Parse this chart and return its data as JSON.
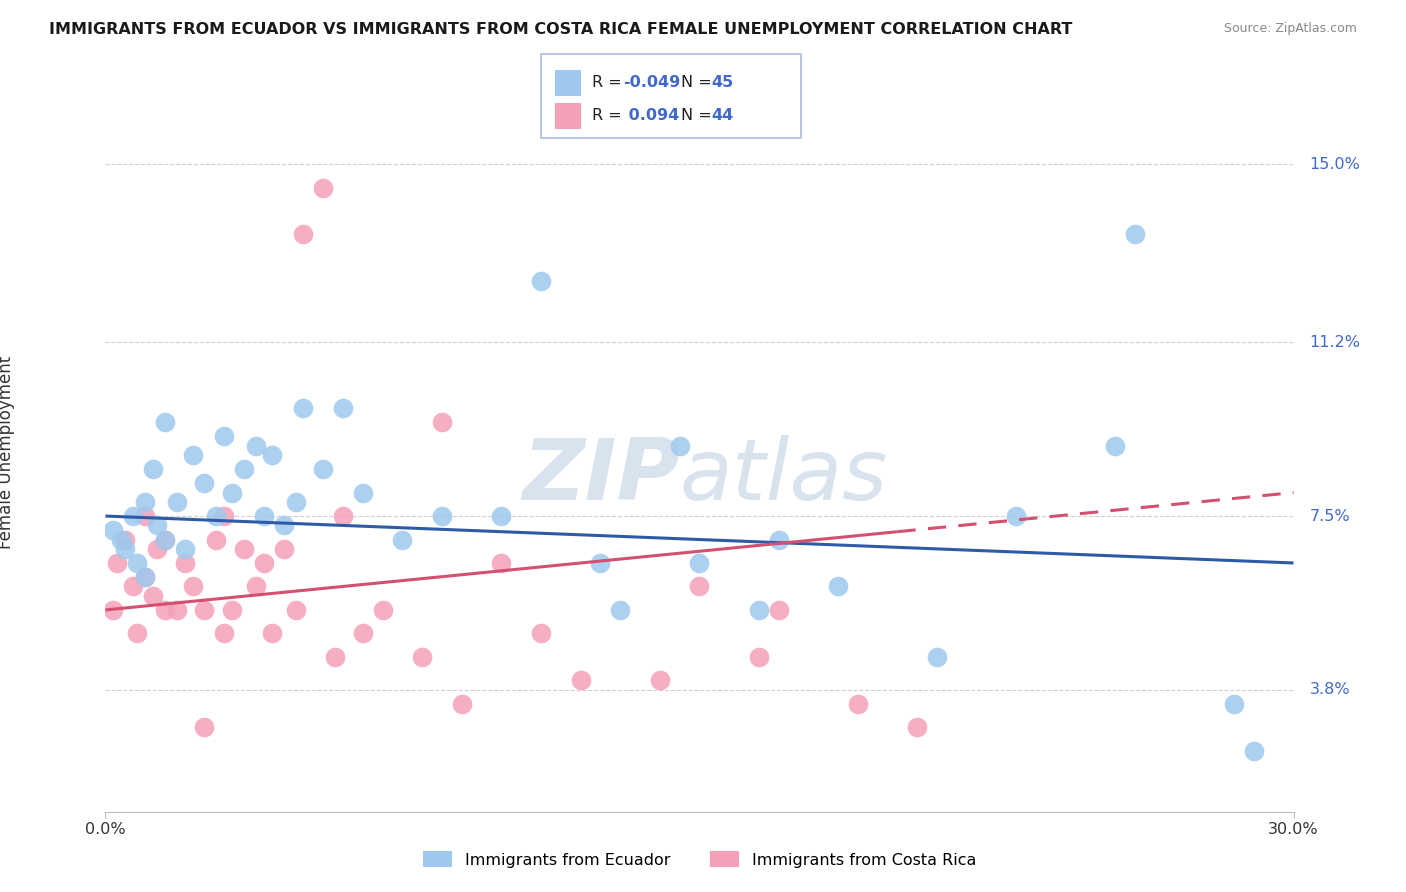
{
  "title": "IMMIGRANTS FROM ECUADOR VS IMMIGRANTS FROM COSTA RICA FEMALE UNEMPLOYMENT CORRELATION CHART",
  "source": "Source: ZipAtlas.com",
  "xlabel_bottom": [
    "0.0%",
    "30.0%"
  ],
  "ylabel": "Female Unemployment",
  "yticks_labels": [
    "3.8%",
    "7.5%",
    "11.2%",
    "15.0%"
  ],
  "yticks_values": [
    3.8,
    7.5,
    11.2,
    15.0
  ],
  "xmin": 0.0,
  "xmax": 30.0,
  "ymin": 1.2,
  "ymax": 16.5,
  "ecuador_R": "-0.049",
  "ecuador_N": "45",
  "costarica_R": "0.094",
  "costarica_N": "44",
  "ecuador_color": "#9ec8ee",
  "costarica_color": "#f4a0b8",
  "ecuador_line_color": "#2e5ba8",
  "costarica_line_color": "#d45070",
  "watermark_zip": "ZIP",
  "watermark_atlas": "atlas",
  "ecuador_scatter_x": [
    0.2,
    0.4,
    0.5,
    0.7,
    0.8,
    1.0,
    1.0,
    1.2,
    1.3,
    1.5,
    1.5,
    1.8,
    2.0,
    2.2,
    2.5,
    2.8,
    3.0,
    3.2,
    3.5,
    3.8,
    4.0,
    4.2,
    4.5,
    4.8,
    5.0,
    5.5,
    6.0,
    6.5,
    7.5,
    8.5,
    10.0,
    11.0,
    12.5,
    13.0,
    14.5,
    15.0,
    16.5,
    17.0,
    18.5,
    21.0,
    23.0,
    25.5,
    26.0,
    28.5,
    29.0
  ],
  "ecuador_scatter_y": [
    7.2,
    7.0,
    6.8,
    7.5,
    6.5,
    7.8,
    6.2,
    8.5,
    7.3,
    9.5,
    7.0,
    7.8,
    6.8,
    8.8,
    8.2,
    7.5,
    9.2,
    8.0,
    8.5,
    9.0,
    7.5,
    8.8,
    7.3,
    7.8,
    9.8,
    8.5,
    9.8,
    8.0,
    7.0,
    7.5,
    7.5,
    12.5,
    6.5,
    5.5,
    9.0,
    6.5,
    5.5,
    7.0,
    6.0,
    4.5,
    7.5,
    9.0,
    13.5,
    3.5,
    2.5
  ],
  "costarica_scatter_x": [
    0.2,
    0.3,
    0.5,
    0.7,
    0.8,
    1.0,
    1.0,
    1.2,
    1.3,
    1.5,
    1.5,
    1.8,
    2.0,
    2.2,
    2.5,
    2.8,
    3.0,
    3.2,
    3.5,
    3.8,
    4.0,
    4.2,
    4.5,
    5.0,
    5.5,
    6.0,
    6.5,
    7.0,
    8.0,
    9.0,
    10.0,
    11.0,
    12.0,
    14.0,
    15.0,
    16.5,
    17.0,
    19.0,
    3.0,
    2.5,
    4.8,
    5.8,
    8.5,
    20.5
  ],
  "costarica_scatter_y": [
    5.5,
    6.5,
    7.0,
    6.0,
    5.0,
    7.5,
    6.2,
    5.8,
    6.8,
    5.5,
    7.0,
    5.5,
    6.5,
    6.0,
    5.5,
    7.0,
    5.0,
    5.5,
    6.8,
    6.0,
    6.5,
    5.0,
    6.8,
    13.5,
    14.5,
    7.5,
    5.0,
    5.5,
    4.5,
    3.5,
    6.5,
    5.0,
    4.0,
    4.0,
    6.0,
    4.5,
    5.5,
    3.5,
    7.5,
    3.0,
    5.5,
    4.5,
    9.5,
    3.0
  ],
  "costarica_solid_end_x": 20.0,
  "legend_ecuador_text": "R =  -0.049  N = 45",
  "legend_costarica_text": "R =  0.094   N = 44"
}
